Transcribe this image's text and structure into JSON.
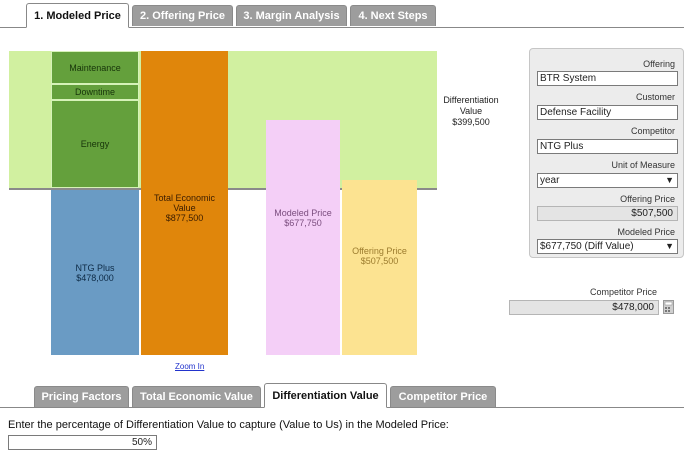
{
  "top_tabs": [
    {
      "label": "1. Modeled Price"
    },
    {
      "label": "2. Offering Price"
    },
    {
      "label": "3. Margin Analysis"
    },
    {
      "label": "4. Next Steps"
    }
  ],
  "chart": {
    "segments": {
      "maintenance": "Maintenance",
      "downtime": "Downtime",
      "energy": "Energy"
    },
    "competitor_bar": {
      "name": "NTG Plus",
      "value": "$478,000"
    },
    "tev_bar": {
      "name": "Total Economic Value",
      "value": "$877,500"
    },
    "modeled_bar": {
      "name": "Modeled Price",
      "value": "$677,750"
    },
    "offering_bar": {
      "name": "Offering Price",
      "value": "$507,500"
    },
    "differentiation": {
      "name": "Differentiation Value",
      "value": "$399,500"
    },
    "zoom_link": "Zoom In",
    "colors": {
      "band": "#d1f0a0",
      "value_segments": "#64a03c",
      "competitor": "#6a9bc4",
      "tev": "#e0860b",
      "modeled": "#f4cff7",
      "offering": "#fce391"
    }
  },
  "panel": {
    "offering_label": "Offering",
    "offering_value": "BTR System",
    "customer_label": "Customer",
    "customer_value": "Defense Facility",
    "competitor_label": "Competitor",
    "competitor_value": "NTG Plus",
    "uom_label": "Unit of Measure",
    "uom_value": "year",
    "offering_price_label": "Offering Price",
    "offering_price_value": "$507,500",
    "modeled_price_label": "Modeled Price",
    "modeled_price_value": "$677,750 (Diff Value)"
  },
  "competitor_price": {
    "label": "Competitor Price",
    "value": "$478,000"
  },
  "bottom_tabs": [
    {
      "label": "Pricing Factors"
    },
    {
      "label": "Total Economic Value"
    },
    {
      "label": "Differentiation Value"
    },
    {
      "label": "Competitor Price"
    }
  ],
  "capture": {
    "prompt": "Enter the percentage of Differentiation Value to capture (Value to Us) in the Modeled Price:",
    "value": "50%"
  }
}
